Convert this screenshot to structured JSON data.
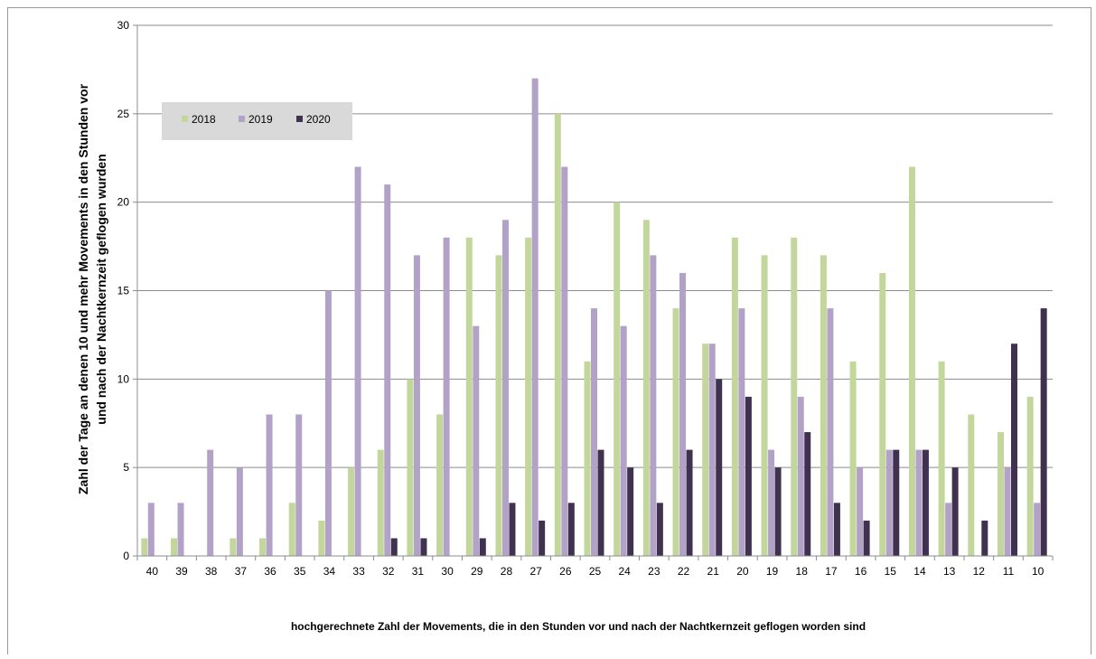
{
  "chart_data": {
    "type": "bar",
    "title": "",
    "xlabel": "hochgerechnete Zahl der Movements, die  in den Stunden vor und nach der Nachtkernzeit geflogen worden sind",
    "ylabel_line1": "Zahl der Tage an denen 10 und mehr  Movements in den Stunden vor",
    "ylabel_line2": "und nach der Nachtkernzeit geflogen wurden",
    "ylim": [
      0,
      30
    ],
    "yticks": [
      0,
      5,
      10,
      15,
      20,
      25,
      30
    ],
    "grid": true,
    "legend_position": "top-left",
    "categories": [
      "40",
      "39",
      "38",
      "37",
      "36",
      "35",
      "34",
      "33",
      "32",
      "31",
      "30",
      "29",
      "28",
      "27",
      "26",
      "25",
      "24",
      "23",
      "22",
      "21",
      "20",
      "19",
      "18",
      "17",
      "16",
      "15",
      "14",
      "13",
      "12",
      "11",
      "10"
    ],
    "series": [
      {
        "name": "2018",
        "color": "#c3d69b",
        "values": [
          1,
          1,
          0,
          1,
          1,
          3,
          2,
          5,
          6,
          10,
          8,
          18,
          17,
          18,
          25,
          11,
          20,
          19,
          14,
          12,
          18,
          17,
          18,
          17,
          11,
          16,
          22,
          11,
          8,
          7,
          9
        ]
      },
      {
        "name": "2019",
        "color": "#b3a2c7",
        "values": [
          3,
          3,
          6,
          5,
          8,
          8,
          15,
          22,
          21,
          17,
          18,
          13,
          19,
          27,
          22,
          14,
          13,
          17,
          16,
          12,
          14,
          6,
          9,
          14,
          5,
          6,
          6,
          3,
          0,
          5,
          3
        ]
      },
      {
        "name": "2020",
        "color": "#403151",
        "values": [
          0,
          0,
          0,
          0,
          0,
          0,
          0,
          0,
          1,
          1,
          0,
          1,
          3,
          2,
          3,
          6,
          5,
          3,
          6,
          10,
          9,
          5,
          7,
          3,
          2,
          6,
          6,
          5,
          2,
          12,
          14
        ]
      }
    ]
  }
}
